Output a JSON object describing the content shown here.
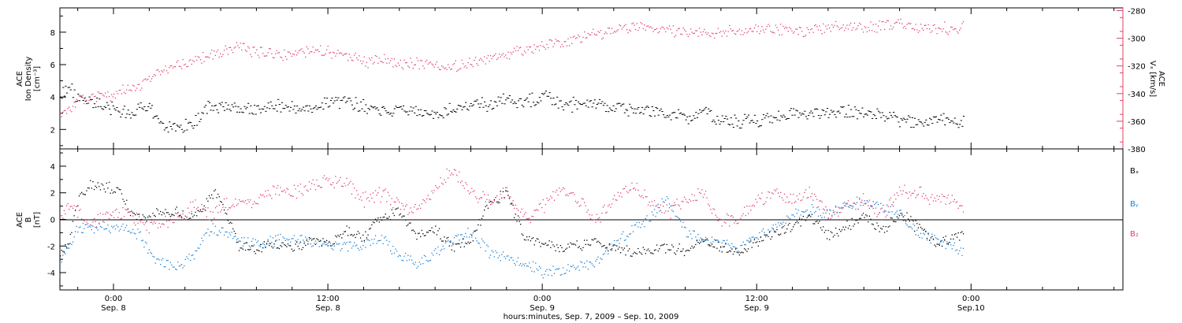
{
  "colors": {
    "density": "#000000",
    "speed": "#e0406a",
    "bx": "#000000",
    "by": "#1a7fd4",
    "bz": "#e0406a",
    "axis": "#000000"
  },
  "x_axis": {
    "label": "hours:minutes, Sep. 7, 2009 – Sep. 10, 2009",
    "range_hours": [
      -3,
      56.5
    ],
    "ticks": [
      {
        "hour": 0,
        "time": "0:00",
        "date": "Sep. 8"
      },
      {
        "hour": 12,
        "time": "12:00",
        "date": "Sep. 8"
      },
      {
        "hour": 24,
        "time": "0:00",
        "date": "Sep. 9"
      },
      {
        "hour": 36,
        "time": "12:00",
        "date": "Sep. 9"
      },
      {
        "hour": 48,
        "time": "0:00",
        "date": "Sep.10"
      }
    ]
  },
  "top_panel": {
    "left_axis": {
      "label_line1": "ACE",
      "label_line2": "Ion Density",
      "label_line3": "[cm⁻³]",
      "range": [
        0.8,
        9.5
      ],
      "ticks": [
        "2",
        "4",
        "6",
        "8"
      ]
    },
    "right_axis": {
      "label_line1": "ACE",
      "label_line2": "Vₓ [km/s]",
      "range": [
        -380,
        -278
      ],
      "ticks": [
        "-280",
        "-300",
        "-320",
        "-340",
        "-360",
        "-380"
      ]
    }
  },
  "bottom_panel": {
    "axis": {
      "label_line1": "ACE",
      "label_line2": "B",
      "label_line3": "[nT]",
      "range": [
        -5.3,
        5.3
      ],
      "ticks": [
        "4",
        "2",
        "0",
        "-2",
        "-4"
      ]
    },
    "legend": [
      "Bₓ",
      "Bᵧ",
      "B₂"
    ]
  },
  "chart_data": [
    {
      "type": "scatter",
      "x_unit": "hours from 0:00 Sep. 8, 2009",
      "ylabel": "ACE Ion Density [cm⁻³]",
      "series": [
        {
          "axis": "left",
          "x": [
            -3,
            -2.5,
            -2,
            -1.5,
            -1,
            -0.5,
            0,
            0.5,
            1,
            1.5,
            2,
            2.5,
            3,
            3.5,
            4,
            4.5,
            5,
            5.5,
            6,
            7,
            8,
            9,
            10,
            11,
            12,
            13,
            14,
            15,
            16,
            17,
            18,
            19,
            20,
            21,
            22,
            23,
            24,
            25,
            26,
            27,
            28,
            29,
            30,
            31,
            32,
            33,
            34,
            35,
            36,
            37,
            38,
            39,
            40,
            41,
            42,
            43,
            44,
            45,
            46,
            47,
            47.6
          ],
          "values": [
            4.2,
            4.6,
            4.0,
            3.7,
            3.6,
            3.5,
            3.3,
            3.1,
            3.0,
            3.3,
            3.4,
            2.4,
            2.1,
            2.0,
            2.2,
            2.5,
            3.2,
            3.5,
            3.4,
            3.3,
            3.2,
            3.5,
            3.4,
            3.3,
            3.6,
            3.7,
            3.5,
            3.2,
            3.3,
            3.1,
            3.0,
            3.3,
            3.6,
            3.5,
            3.9,
            3.8,
            4.0,
            3.7,
            3.5,
            3.6,
            3.4,
            3.2,
            3.1,
            2.9,
            2.7,
            3.0,
            2.6,
            2.5,
            2.6,
            2.8,
            3.0,
            3.1,
            3.0,
            3.2,
            3.1,
            2.8,
            2.6,
            2.5,
            2.6,
            2.5,
            2.4
          ]
        },
        {
          "axis": "right",
          "x": [
            -3,
            -2.5,
            -2,
            -1.5,
            -1,
            -0.5,
            0,
            0.5,
            1,
            1.5,
            2,
            2.5,
            3,
            3.5,
            4,
            4.5,
            5,
            5.5,
            6,
            7,
            8,
            9,
            10,
            11,
            12,
            13,
            14,
            15,
            16,
            17,
            18,
            19,
            20,
            21,
            22,
            23,
            24,
            25,
            26,
            27,
            28,
            29,
            30,
            31,
            32,
            33,
            34,
            35,
            36,
            37,
            38,
            39,
            40,
            41,
            42,
            43,
            44,
            45,
            46,
            47,
            47.6
          ],
          "values": [
            -355,
            -350,
            -346,
            -344,
            -342,
            -341,
            -341,
            -338,
            -335,
            -334,
            -330,
            -325,
            -321,
            -319,
            -318,
            -316,
            -313,
            -312,
            -310,
            -306,
            -309,
            -312,
            -310,
            -309,
            -310,
            -311,
            -317,
            -314,
            -318,
            -317,
            -321,
            -320,
            -318,
            -314,
            -311,
            -308,
            -305,
            -303,
            -300,
            -297,
            -294,
            -291,
            -292,
            -294,
            -295,
            -296,
            -295,
            -295,
            -294,
            -293,
            -294,
            -294,
            -292,
            -291,
            -293,
            -291,
            -290,
            -292,
            -292,
            -293,
            -291
          ]
        }
      ]
    },
    {
      "type": "scatter",
      "x_unit": "hours from 0:00 Sep. 8, 2009",
      "ylabel": "ACE B [nT]",
      "series": [
        {
          "name": "Bₓ",
          "x": [
            -3,
            -2.5,
            -2,
            -1.5,
            -1,
            -0.5,
            0,
            0.5,
            1,
            1.5,
            2,
            2.5,
            3,
            3.5,
            4,
            4.5,
            5,
            5.5,
            6,
            7,
            8,
            9,
            10,
            11,
            12,
            13,
            14,
            15,
            16,
            17,
            18,
            19,
            20,
            21,
            22,
            23,
            24,
            25,
            26,
            27,
            28,
            29,
            30,
            31,
            32,
            33,
            34,
            35,
            36,
            37,
            38,
            39,
            40,
            41,
            42,
            43,
            44,
            45,
            46,
            47,
            47.6
          ],
          "values": [
            -2.5,
            -1.5,
            1.5,
            2.5,
            2.6,
            2.4,
            2.3,
            1.8,
            0.4,
            0.2,
            0.3,
            0.6,
            0.7,
            0.5,
            0.3,
            0.2,
            0.8,
            2.0,
            1.6,
            -2.0,
            -2.1,
            -1.9,
            -2.0,
            -1.6,
            -1.9,
            -0.8,
            -1.3,
            0.3,
            0.6,
            -1.2,
            -0.8,
            -2.0,
            -1.5,
            1.2,
            2.0,
            -1.3,
            -1.9,
            -2.2,
            -2.0,
            -1.8,
            -2.1,
            -2.4,
            -2.3,
            -2.0,
            -2.4,
            -1.6,
            -2.1,
            -2.3,
            -1.8,
            -1.0,
            -0.5,
            0.3,
            -1.2,
            -0.5,
            0.2,
            -0.8,
            0.6,
            -0.6,
            -1.8,
            -1.3,
            -1.0
          ]
        },
        {
          "name": "Bᵧ",
          "x": [
            -3,
            -2.5,
            -2,
            -1.5,
            -1,
            -0.5,
            0,
            0.5,
            1,
            1.5,
            2,
            2.5,
            3,
            3.5,
            4,
            4.5,
            5,
            5.5,
            6,
            7,
            8,
            9,
            10,
            11,
            12,
            13,
            14,
            15,
            16,
            17,
            18,
            19,
            20,
            21,
            22,
            23,
            24,
            25,
            26,
            27,
            28,
            29,
            30,
            31,
            32,
            33,
            34,
            35,
            36,
            37,
            38,
            39,
            40,
            41,
            42,
            43,
            44,
            45,
            46,
            47,
            47.6
          ],
          "values": [
            -3.2,
            -2.0,
            -0.6,
            -0.5,
            -0.6,
            -0.5,
            -0.6,
            -0.5,
            -0.8,
            -1.2,
            -2.5,
            -3.1,
            -3.3,
            -3.4,
            -3.2,
            -2.8,
            -1.2,
            -0.6,
            -0.8,
            -1.5,
            -1.7,
            -1.6,
            -1.3,
            -1.6,
            -1.9,
            -2.0,
            -1.8,
            -1.4,
            -2.8,
            -3.3,
            -2.5,
            -1.5,
            -1.0,
            -2.4,
            -3.0,
            -3.2,
            -4.0,
            -3.9,
            -3.5,
            -3.3,
            -1.8,
            -0.8,
            0.2,
            1.6,
            -0.8,
            -1.6,
            -1.8,
            -2.1,
            -1.2,
            -0.5,
            0.3,
            0.8,
            0.4,
            1.0,
            1.3,
            0.9,
            0.5,
            -1.0,
            -1.6,
            -2.0,
            -2.4
          ]
        },
        {
          "name": "B₂",
          "x": [
            -3,
            -2.5,
            -2,
            -1.5,
            -1,
            -0.5,
            0,
            0.5,
            1,
            1.5,
            2,
            2.5,
            3,
            3.5,
            4,
            4.5,
            5,
            5.5,
            6,
            7,
            8,
            9,
            10,
            11,
            12,
            13,
            14,
            15,
            16,
            17,
            18,
            19,
            20,
            21,
            22,
            23,
            24,
            25,
            26,
            27,
            28,
            29,
            30,
            31,
            32,
            33,
            34,
            35,
            36,
            37,
            38,
            39,
            40,
            41,
            42,
            43,
            44,
            45,
            46,
            47,
            47.6
          ],
          "values": [
            0.2,
            1.0,
            0.5,
            -0.3,
            0.0,
            0.3,
            0.5,
            0.6,
            0.3,
            -0.2,
            -0.4,
            -0.3,
            0.0,
            0.3,
            0.6,
            1.2,
            0.8,
            0.2,
            1.0,
            1.3,
            1.5,
            2.2,
            2.0,
            2.5,
            3.0,
            2.8,
            1.5,
            2.0,
            1.0,
            0.8,
            2.5,
            3.8,
            2.0,
            1.5,
            2.0,
            0.0,
            1.0,
            2.5,
            1.5,
            0.0,
            1.5,
            2.5,
            1.5,
            0.5,
            1.5,
            2.0,
            0.0,
            0.2,
            1.5,
            2.0,
            1.5,
            2.0,
            0.5,
            1.0,
            1.5,
            0.2,
            2.0,
            2.0,
            1.5,
            1.5,
            0.8
          ]
        }
      ]
    }
  ]
}
